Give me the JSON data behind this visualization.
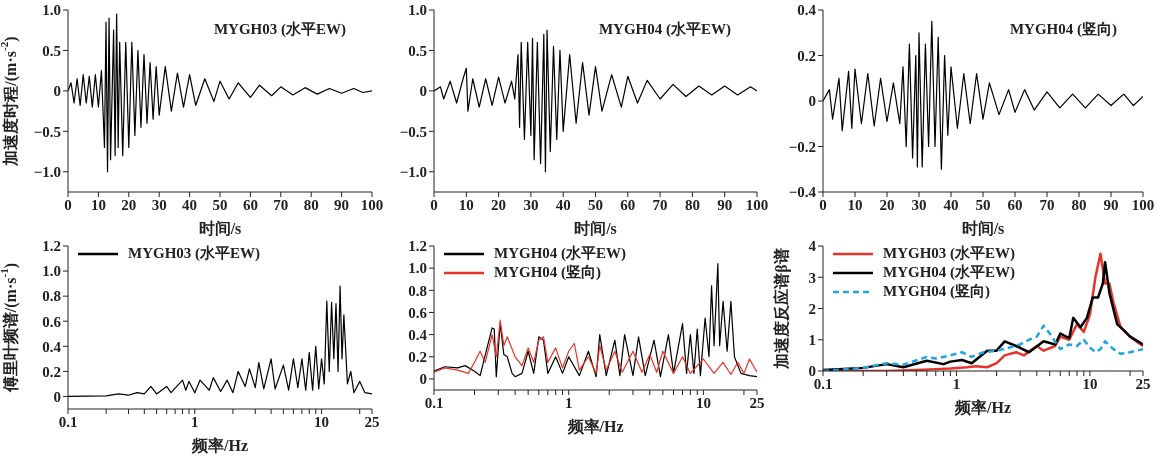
{
  "chart_data": [
    {
      "type": "line",
      "ylabel": "加速度时程/(m·s$^{-2}$)",
      "xlabel": "时间/s",
      "annotations": [
        "MYGH03 (水平EW)"
      ],
      "xlim": [
        0,
        100
      ],
      "xticks": [
        0,
        10,
        20,
        30,
        40,
        50,
        60,
        70,
        80,
        90,
        100
      ],
      "ylim": [
        -1.25,
        1
      ],
      "yticks": [
        {
          "value": 1,
          "label": "1.0"
        },
        {
          "value": 0.5,
          "label": "0.5"
        },
        0,
        {
          "value": -0.5,
          "label": "−0.5"
        },
        {
          "value": -1,
          "label": "−1.0"
        }
      ],
      "series": [
        {
          "color": "#000000",
          "x": [
            0,
            1,
            2,
            3,
            4,
            5,
            6,
            7,
            8,
            9,
            10,
            11,
            12,
            12.5,
            13,
            13.5,
            14,
            15,
            15.5,
            16,
            16.5,
            17,
            18,
            19,
            20,
            21,
            22,
            23,
            24,
            25,
            26,
            27,
            28,
            29,
            30,
            32,
            34,
            36,
            38,
            40,
            42,
            45,
            48,
            50,
            53,
            56,
            60,
            63,
            67,
            70,
            74,
            78,
            82,
            86,
            90,
            94,
            97,
            100
          ],
          "values": [
            0,
            0.1,
            -0.15,
            0.15,
            -0.18,
            0.2,
            -0.15,
            0.18,
            -0.2,
            0.2,
            -0.2,
            0.25,
            -0.7,
            0.85,
            -1.0,
            0.9,
            -0.85,
            0.75,
            -0.8,
            0.95,
            -0.7,
            0.6,
            -0.8,
            0.6,
            -0.7,
            0.6,
            -0.55,
            0.5,
            -0.45,
            0.45,
            -0.4,
            0.35,
            -0.35,
            0.3,
            -0.3,
            0.3,
            -0.25,
            0.22,
            -0.2,
            0.2,
            -0.18,
            0.15,
            -0.13,
            0.12,
            -0.1,
            0.1,
            -0.08,
            0.07,
            -0.06,
            0.05,
            -0.05,
            0.04,
            -0.04,
            0.03,
            -0.03,
            0.03,
            -0.02,
            0
          ]
        }
      ]
    },
    {
      "type": "line",
      "xlabel": "时间/s",
      "annotations": [
        "MYGH04 (水平EW)"
      ],
      "xlim": [
        0,
        100
      ],
      "xticks": [
        0,
        10,
        20,
        30,
        40,
        50,
        60,
        70,
        80,
        90,
        100
      ],
      "ylim": [
        -1.25,
        1
      ],
      "yticks": [
        {
          "value": 1,
          "label": "1.0"
        },
        {
          "value": 0.5,
          "label": "0.5"
        },
        0,
        {
          "value": -0.5,
          "label": "−0.5"
        },
        {
          "value": -1,
          "label": "−1.0"
        }
      ],
      "series": [
        {
          "color": "#000000",
          "x": [
            0,
            2,
            3,
            5,
            7,
            9,
            10,
            10.5,
            12,
            14,
            16,
            18,
            20,
            22,
            24,
            25,
            26,
            26.5,
            27,
            28,
            29,
            30,
            30.5,
            31,
            32,
            33,
            34,
            34.5,
            35,
            36,
            37,
            38,
            39,
            40,
            42,
            44,
            46,
            48,
            50,
            52,
            55,
            58,
            60,
            63,
            66,
            70,
            74,
            78,
            82,
            86,
            90,
            94,
            98,
            100
          ],
          "values": [
            0,
            0.05,
            -0.1,
            0.12,
            -0.15,
            0.15,
            0.28,
            -0.25,
            0.15,
            -0.2,
            0.15,
            -0.18,
            0.17,
            -0.15,
            0.12,
            -0.1,
            0.45,
            -0.45,
            0.6,
            -0.6,
            0.6,
            -0.55,
            0.65,
            -0.85,
            0.6,
            -0.9,
            0.7,
            -1.0,
            0.75,
            -0.75,
            0.55,
            -0.6,
            0.5,
            -0.5,
            0.45,
            -0.4,
            0.35,
            -0.3,
            0.3,
            -0.25,
            0.2,
            -0.2,
            0.18,
            -0.15,
            0.13,
            -0.1,
            0.08,
            -0.07,
            0.06,
            -0.05,
            0.06,
            -0.05,
            0.05,
            0
          ]
        }
      ]
    },
    {
      "type": "line",
      "xlabel": "时间/s",
      "annotations": [
        "MYGH04 (竖向)"
      ],
      "xlim": [
        0,
        100
      ],
      "xticks": [
        0,
        10,
        20,
        30,
        40,
        50,
        60,
        70,
        80,
        90,
        100
      ],
      "ylim": [
        -0.4,
        0.4
      ],
      "yticks": [
        0.4,
        0.2,
        0,
        {
          "value": -0.2,
          "label": "−0.2"
        },
        {
          "value": -0.4,
          "label": "−0.4"
        }
      ],
      "series": [
        {
          "color": "#000000",
          "x": [
            0,
            2,
            3,
            5,
            6,
            8,
            9,
            10,
            12,
            14,
            16,
            18,
            20,
            22,
            24,
            25,
            26,
            27,
            28,
            29,
            29.5,
            30,
            31,
            32,
            33,
            34,
            35,
            36,
            37,
            38,
            39,
            40,
            42,
            44,
            46,
            48,
            50,
            52,
            55,
            58,
            60,
            63,
            66,
            70,
            74,
            78,
            82,
            86,
            90,
            94,
            97,
            100
          ],
          "values": [
            0,
            0.05,
            -0.08,
            0.1,
            -0.13,
            0.13,
            -0.12,
            0.14,
            -0.1,
            0.12,
            -0.11,
            0.1,
            -0.09,
            0.08,
            -0.1,
            0.15,
            -0.2,
            0.25,
            -0.25,
            0.2,
            -0.29,
            0.3,
            -0.29,
            0.25,
            -0.2,
            0.35,
            -0.2,
            0.28,
            -0.3,
            0.2,
            -0.15,
            0.15,
            -0.12,
            0.12,
            -0.1,
            0.12,
            -0.08,
            0.08,
            -0.06,
            0.05,
            -0.05,
            0.05,
            -0.04,
            0.04,
            -0.03,
            0.03,
            -0.03,
            0.03,
            -0.02,
            0.03,
            -0.02,
            0.02
          ]
        }
      ]
    },
    {
      "type": "line",
      "log": "x",
      "ylabel": "傅里叶频谱/(m·s$^{-1}$)",
      "xlabel": "频率/Hz",
      "legend": "top left",
      "xlim": [
        0.1,
        25
      ],
      "xticks": [
        0.1,
        {
          "value": 0.2,
          "label": null
        },
        {
          "value": 0.3,
          "label": null
        },
        {
          "value": 0.4,
          "label": null
        },
        {
          "value": 0.5,
          "label": null
        },
        {
          "value": 0.6,
          "label": null
        },
        {
          "value": 0.7,
          "label": null
        },
        {
          "value": 0.8,
          "label": null
        },
        {
          "value": 0.9,
          "label": null
        },
        1,
        {
          "value": 2,
          "label": null
        },
        {
          "value": 3,
          "label": null
        },
        {
          "value": 4,
          "label": null
        },
        {
          "value": 5,
          "label": null
        },
        {
          "value": 6,
          "label": null
        },
        {
          "value": 7,
          "label": null
        },
        {
          "value": 8,
          "label": null
        },
        {
          "value": 9,
          "label": null
        },
        10,
        {
          "value": 20,
          "label": null
        },
        25
      ],
      "ylim": [
        -0.1,
        1.2
      ],
      "yticks": [
        0,
        0.2,
        0.4,
        0.6,
        0.8,
        {
          "value": 1,
          "label": "1.0"
        },
        1.2
      ],
      "series": [
        {
          "name": "MYGH03 (水平EW)",
          "color": "#000000",
          "x": [
            0.1,
            0.2,
            0.25,
            0.3,
            0.35,
            0.4,
            0.45,
            0.5,
            0.6,
            0.65,
            0.8,
            0.85,
            0.9,
            1,
            1.1,
            1.3,
            1.4,
            1.6,
            1.8,
            2,
            2.2,
            2.5,
            2.7,
            3,
            3.2,
            3.5,
            4,
            4.3,
            5,
            5.5,
            6,
            6.5,
            7,
            7.5,
            8,
            8.5,
            9,
            9.5,
            10,
            10.5,
            11,
            11.5,
            12,
            12.5,
            13,
            13.5,
            14,
            14.5,
            15,
            16,
            17,
            18,
            20,
            22,
            25
          ],
          "values": [
            0,
            0.005,
            0.02,
            0.01,
            0.03,
            0.02,
            0.08,
            0.02,
            0.08,
            0.03,
            0.13,
            0.05,
            0.12,
            0.03,
            0.13,
            0.05,
            0.15,
            0.04,
            0.13,
            0.03,
            0.2,
            0.08,
            0.22,
            0.07,
            0.27,
            0.06,
            0.3,
            0.06,
            0.25,
            0.05,
            0.3,
            0.07,
            0.3,
            0.05,
            0.35,
            0.05,
            0.4,
            0.06,
            0.3,
            0.1,
            0.76,
            0.2,
            0.75,
            0.3,
            0.74,
            0.2,
            0.88,
            0.3,
            0.65,
            0.1,
            0.2,
            0.03,
            0.12,
            0.03,
            0.02
          ]
        }
      ]
    },
    {
      "type": "line",
      "log": "x",
      "xlabel": "频率/Hz",
      "legend": "top left",
      "xlim": [
        0.1,
        25
      ],
      "xticks": [
        0.1,
        {
          "value": 0.2,
          "label": null
        },
        {
          "value": 0.3,
          "label": null
        },
        {
          "value": 0.4,
          "label": null
        },
        {
          "value": 0.5,
          "label": null
        },
        {
          "value": 0.6,
          "label": null
        },
        {
          "value": 0.7,
          "label": null
        },
        {
          "value": 0.8,
          "label": null
        },
        {
          "value": 0.9,
          "label": null
        },
        1,
        {
          "value": 2,
          "label": null
        },
        {
          "value": 3,
          "label": null
        },
        {
          "value": 4,
          "label": null
        },
        {
          "value": 5,
          "label": null
        },
        {
          "value": 6,
          "label": null
        },
        {
          "value": 7,
          "label": null
        },
        {
          "value": 8,
          "label": null
        },
        {
          "value": 9,
          "label": null
        },
        10,
        {
          "value": 20,
          "label": null
        },
        25
      ],
      "ylim": [
        -0.1,
        1.2
      ],
      "yticks": [
        0,
        0.2,
        0.4,
        0.6,
        0.8,
        {
          "value": 1,
          "label": "1.0"
        },
        1.2
      ],
      "series": [
        {
          "name": "MYGH04 (水平EW)",
          "color": "#000000",
          "x": [
            0.1,
            0.12,
            0.15,
            0.17,
            0.2,
            0.22,
            0.25,
            0.27,
            0.28,
            0.29,
            0.31,
            0.33,
            0.35,
            0.38,
            0.4,
            0.45,
            0.5,
            0.55,
            0.6,
            0.65,
            0.7,
            0.8,
            0.9,
            1,
            1.2,
            1.4,
            1.6,
            1.7,
            1.9,
            2.2,
            2.4,
            2.6,
            3,
            3.3,
            3.7,
            4.3,
            4.8,
            5.5,
            6,
            7,
            7.5,
            8,
            8.5,
            9,
            9.5,
            10.3,
            11,
            11.5,
            12,
            12.8,
            13.2,
            14,
            15,
            16,
            17,
            19,
            22,
            25
          ],
          "values": [
            0.07,
            0.11,
            0.1,
            0.12,
            0.07,
            0.03,
            0.3,
            0.46,
            0.45,
            0.02,
            0.5,
            0.22,
            0.2,
            0.05,
            0.02,
            0.05,
            0.25,
            0.05,
            0.38,
            0.35,
            0.05,
            0.2,
            0.05,
            0.2,
            0.03,
            0.25,
            0.02,
            0.4,
            0.03,
            0.35,
            0.03,
            0.4,
            0.03,
            0.38,
            0.03,
            0.35,
            0.02,
            0.4,
            0.05,
            0.5,
            0.05,
            0.4,
            0.05,
            0.45,
            0.03,
            0.55,
            0.2,
            0.84,
            0.3,
            1.04,
            0.3,
            0.7,
            0.25,
            0.7,
            0.2,
            0.05,
            0.03,
            0.02
          ]
        },
        {
          "name": "MYGH04 (竖向)",
          "color": "#e8332b",
          "x": [
            0.1,
            0.12,
            0.15,
            0.18,
            0.2,
            0.22,
            0.24,
            0.27,
            0.29,
            0.31,
            0.33,
            0.35,
            0.4,
            0.45,
            0.5,
            0.55,
            0.6,
            0.65,
            0.7,
            0.8,
            0.9,
            1,
            1.1,
            1.2,
            1.4,
            1.6,
            1.7,
            1.9,
            2.2,
            2.5,
            3,
            3.5,
            4,
            4.5,
            5,
            6,
            7,
            8,
            10,
            12,
            14,
            16,
            18,
            20,
            22,
            25
          ],
          "values": [
            0.06,
            0.1,
            0.08,
            0.05,
            0.15,
            0.25,
            0.15,
            0.4,
            0.2,
            0.53,
            0.3,
            0.38,
            0.2,
            0.12,
            0.28,
            0.15,
            0.35,
            0.38,
            0.15,
            0.28,
            0.1,
            0.25,
            0.32,
            0.08,
            0.2,
            0.05,
            0.3,
            0.08,
            0.25,
            0.06,
            0.25,
            0.06,
            0.22,
            0.06,
            0.25,
            0.05,
            0.2,
            0.05,
            0.18,
            0.05,
            0.15,
            0.04,
            0.15,
            0.05,
            0.18,
            0.06
          ]
        }
      ]
    },
    {
      "type": "line",
      "log": "x",
      "ylabel": "加速度反应谱β谱",
      "xlabel": "频率/Hz",
      "legend": "top left",
      "xlim": [
        0.1,
        25
      ],
      "xticks": [
        0.1,
        {
          "value": 0.2,
          "label": null
        },
        {
          "value": 0.3,
          "label": null
        },
        {
          "value": 0.4,
          "label": null
        },
        {
          "value": 0.5,
          "label": null
        },
        {
          "value": 0.6,
          "label": null
        },
        {
          "value": 0.7,
          "label": null
        },
        {
          "value": 0.8,
          "label": null
        },
        {
          "value": 0.9,
          "label": null
        },
        1,
        {
          "value": 2,
          "label": null
        },
        {
          "value": 3,
          "label": null
        },
        {
          "value": 4,
          "label": null
        },
        {
          "value": 5,
          "label": null
        },
        {
          "value": 6,
          "label": null
        },
        {
          "value": 7,
          "label": null
        },
        {
          "value": 8,
          "label": null
        },
        {
          "value": 9,
          "label": null
        },
        10,
        {
          "value": 20,
          "label": null
        },
        25
      ],
      "ylim": [
        0,
        4
      ],
      "yticks": [
        0,
        1,
        2,
        3,
        4
      ],
      "series": [
        {
          "name": "MYGH03 (水平EW)",
          "color": "#e8332b",
          "x": [
            0.1,
            0.2,
            0.3,
            0.5,
            0.7,
            0.9,
            1.2,
            1.4,
            1.7,
            2,
            2.3,
            2.8,
            3.2,
            4,
            4.5,
            5.5,
            6,
            7,
            8,
            9,
            10,
            11,
            12,
            13,
            14,
            15,
            17,
            20,
            25
          ],
          "values": [
            0,
            0,
            0,
            0.03,
            0.06,
            0.08,
            0.12,
            0.15,
            0.12,
            0.25,
            0.5,
            0.6,
            0.5,
            0.8,
            0.65,
            0.8,
            1.1,
            1.0,
            1.5,
            1.25,
            1.8,
            3.0,
            3.75,
            2.8,
            2.8,
            2.2,
            1.4,
            1.1,
            0.8
          ]
        },
        {
          "name": "MYGH04 (水平EW)",
          "color": "#000000",
          "x": [
            0.1,
            0.2,
            0.3,
            0.4,
            0.6,
            0.8,
            0.9,
            1.1,
            1.3,
            1.7,
            2,
            2.3,
            2.8,
            3.5,
            4.5,
            5.5,
            6,
            7,
            7.5,
            8.5,
            9.5,
            10.5,
            11.5,
            12.5,
            13,
            14,
            16,
            18,
            20,
            25
          ],
          "values": [
            0.03,
            0.1,
            0.22,
            0.12,
            0.33,
            0.22,
            0.3,
            0.35,
            0.25,
            0.65,
            0.65,
            0.95,
            0.8,
            0.6,
            0.95,
            0.85,
            1.2,
            1.05,
            1.7,
            1.4,
            1.7,
            2.35,
            2.35,
            2.8,
            3.48,
            2.5,
            1.5,
            1.3,
            1.1,
            0.85
          ]
        },
        {
          "name": "MYGH04 (竖向)",
          "color": "#1ea7df",
          "line_style": "dashed",
          "x": [
            0.1,
            0.2,
            0.3,
            0.4,
            0.6,
            0.7,
            0.9,
            1.1,
            1.3,
            1.6,
            2,
            2.5,
            3,
            3.5,
            4,
            4.5,
            5,
            6,
            7,
            8,
            9,
            10,
            11,
            12,
            13,
            15,
            17,
            20,
            25
          ],
          "values": [
            0,
            0.1,
            0.25,
            0.2,
            0.45,
            0.4,
            0.5,
            0.6,
            0.45,
            0.6,
            0.65,
            0.75,
            0.85,
            1.0,
            1.1,
            1.45,
            1.2,
            0.7,
            0.85,
            0.8,
            1.0,
            0.75,
            0.6,
            0.7,
            0.95,
            0.7,
            0.55,
            0.6,
            0.7
          ]
        }
      ]
    }
  ]
}
